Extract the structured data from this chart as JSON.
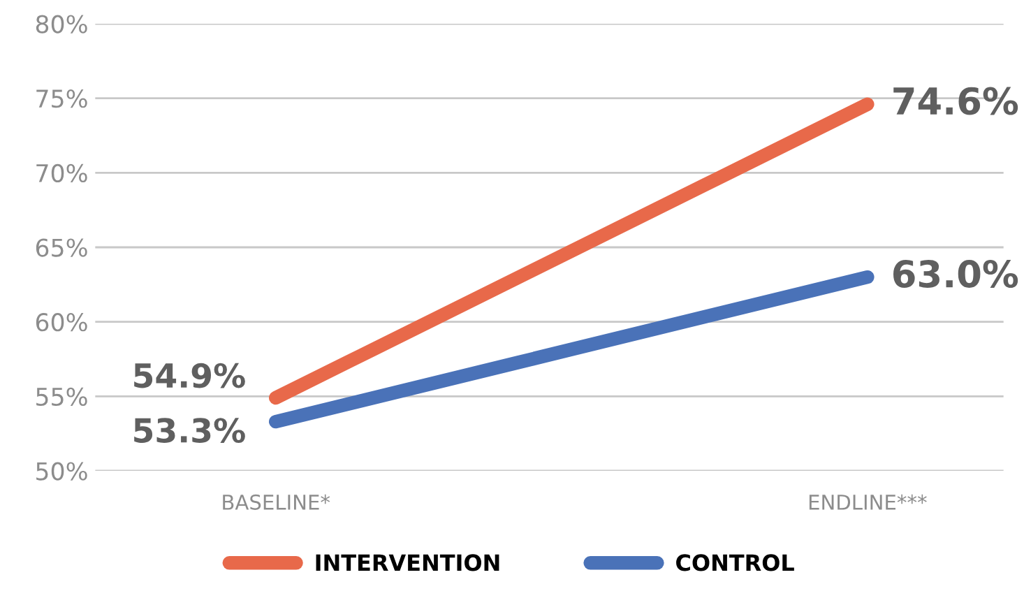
{
  "chart_data": {
    "type": "line",
    "categories": [
      "BASELINE*",
      "ENDLINE***"
    ],
    "series": [
      {
        "name": "INTERVENTION",
        "color": "#e8694a",
        "values": [
          54.9,
          74.6
        ],
        "value_labels": [
          "54.9%",
          "74.6%"
        ]
      },
      {
        "name": "CONTROL",
        "color": "#4a72b8",
        "values": [
          53.3,
          63.0
        ],
        "value_labels": [
          "53.3%",
          "63.0%"
        ]
      }
    ],
    "ylim": [
      50,
      80
    ],
    "yticks": [
      {
        "value": 50,
        "label": "50%"
      },
      {
        "value": 55,
        "label": "55%"
      },
      {
        "value": 60,
        "label": "60%"
      },
      {
        "value": 65,
        "label": "65%"
      },
      {
        "value": 70,
        "label": "70%"
      },
      {
        "value": 75,
        "label": "75%"
      },
      {
        "value": 80,
        "label": "80%"
      }
    ],
    "grid": "y",
    "legend": "bottom",
    "marker": "none",
    "line_style": "solid"
  }
}
